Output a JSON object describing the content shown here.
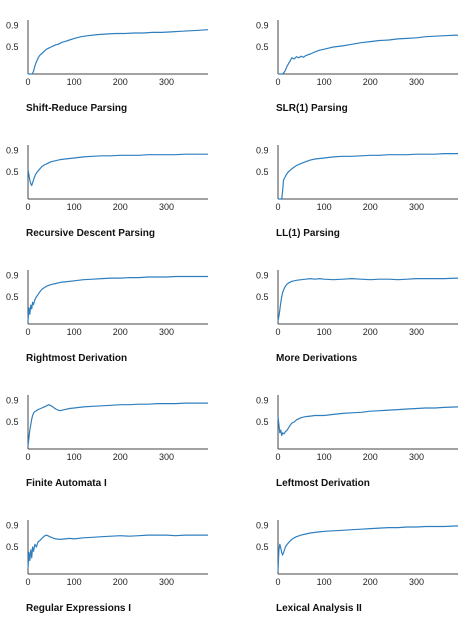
{
  "style": {
    "line_color": "#2f7fbf",
    "axis_color": "#444444",
    "text_color": "#111111"
  },
  "chart_data": [
    {
      "type": "line",
      "title": "Shift-Reduce Parsing",
      "xlim": [
        0,
        390
      ],
      "ylim": [
        0,
        1.0
      ],
      "xticks": [
        0,
        100,
        200,
        300
      ],
      "yticks": [
        0.5,
        0.9
      ],
      "grid": false,
      "legend": "none",
      "x": [
        0,
        3,
        6,
        9,
        12,
        15,
        18,
        22,
        26,
        30,
        35,
        40,
        45,
        50,
        55,
        60,
        65,
        70,
        75,
        80,
        90,
        100,
        115,
        130,
        150,
        170,
        190,
        210,
        230,
        250,
        270,
        290,
        310,
        330,
        350,
        370,
        390
      ],
      "y": [
        0.0,
        0.0,
        0.0,
        0.0,
        0.05,
        0.15,
        0.22,
        0.3,
        0.35,
        0.38,
        0.42,
        0.46,
        0.48,
        0.5,
        0.52,
        0.54,
        0.55,
        0.57,
        0.59,
        0.6,
        0.63,
        0.66,
        0.69,
        0.71,
        0.73,
        0.74,
        0.75,
        0.75,
        0.76,
        0.76,
        0.77,
        0.77,
        0.78,
        0.79,
        0.8,
        0.81,
        0.82
      ]
    },
    {
      "type": "line",
      "title": "SLR(1) Parsing",
      "xlim": [
        0,
        390
      ],
      "ylim": [
        0,
        1.0
      ],
      "xticks": [
        0,
        100,
        200,
        300
      ],
      "yticks": [
        0.5,
        0.9
      ],
      "grid": false,
      "legend": "none",
      "x": [
        0,
        5,
        10,
        15,
        20,
        25,
        30,
        35,
        40,
        45,
        50,
        55,
        60,
        70,
        80,
        90,
        100,
        120,
        140,
        160,
        180,
        200,
        220,
        240,
        260,
        280,
        300,
        320,
        340,
        360,
        390
      ],
      "y": [
        0.0,
        0.0,
        0.0,
        0.05,
        0.15,
        0.22,
        0.3,
        0.28,
        0.32,
        0.3,
        0.33,
        0.31,
        0.34,
        0.37,
        0.41,
        0.44,
        0.46,
        0.5,
        0.52,
        0.55,
        0.58,
        0.6,
        0.62,
        0.63,
        0.65,
        0.66,
        0.67,
        0.69,
        0.7,
        0.71,
        0.72
      ]
    },
    {
      "type": "line",
      "title": "Recursive Descent Parsing",
      "xlim": [
        0,
        390
      ],
      "ylim": [
        0,
        1.0
      ],
      "xticks": [
        0,
        100,
        200,
        300
      ],
      "yticks": [
        0.5,
        0.9
      ],
      "grid": false,
      "legend": "none",
      "x": [
        0,
        2,
        4,
        6,
        8,
        10,
        13,
        16,
        20,
        25,
        30,
        35,
        40,
        45,
        50,
        60,
        70,
        80,
        90,
        100,
        120,
        140,
        160,
        180,
        200,
        220,
        240,
        260,
        280,
        300,
        320,
        340,
        360,
        390
      ],
      "y": [
        0.55,
        0.45,
        0.35,
        0.28,
        0.25,
        0.3,
        0.38,
        0.45,
        0.5,
        0.55,
        0.6,
        0.63,
        0.65,
        0.67,
        0.69,
        0.71,
        0.73,
        0.74,
        0.75,
        0.76,
        0.78,
        0.79,
        0.8,
        0.8,
        0.81,
        0.81,
        0.81,
        0.82,
        0.82,
        0.82,
        0.82,
        0.83,
        0.83,
        0.83
      ]
    },
    {
      "type": "line",
      "title": "LL(1) Parsing",
      "xlim": [
        0,
        390
      ],
      "ylim": [
        0,
        1.0
      ],
      "xticks": [
        0,
        100,
        200,
        300
      ],
      "yticks": [
        0.5,
        0.9
      ],
      "grid": false,
      "legend": "none",
      "x": [
        0,
        4,
        8,
        10,
        12,
        15,
        18,
        22,
        26,
        30,
        35,
        40,
        50,
        60,
        70,
        80,
        90,
        100,
        120,
        140,
        160,
        180,
        200,
        220,
        240,
        260,
        280,
        300,
        320,
        340,
        360,
        390
      ],
      "y": [
        0.0,
        0.0,
        0.0,
        0.15,
        0.35,
        0.4,
        0.45,
        0.5,
        0.53,
        0.56,
        0.59,
        0.62,
        0.66,
        0.69,
        0.72,
        0.74,
        0.75,
        0.76,
        0.78,
        0.79,
        0.79,
        0.8,
        0.81,
        0.81,
        0.82,
        0.82,
        0.82,
        0.83,
        0.83,
        0.83,
        0.84,
        0.84
      ]
    },
    {
      "type": "line",
      "title": "Rightmost Derivation",
      "xlim": [
        0,
        390
      ],
      "ylim": [
        0,
        1.0
      ],
      "xticks": [
        0,
        100,
        200,
        300
      ],
      "yticks": [
        0.5,
        0.9
      ],
      "grid": false,
      "legend": "none",
      "x": [
        0,
        2,
        4,
        6,
        8,
        10,
        12,
        15,
        18,
        22,
        26,
        30,
        35,
        40,
        50,
        60,
        70,
        80,
        100,
        120,
        140,
        160,
        180,
        200,
        220,
        240,
        260,
        280,
        300,
        320,
        340,
        360,
        390
      ],
      "y": [
        0.05,
        0.3,
        0.18,
        0.35,
        0.28,
        0.4,
        0.36,
        0.45,
        0.5,
        0.55,
        0.6,
        0.64,
        0.67,
        0.7,
        0.73,
        0.75,
        0.77,
        0.78,
        0.8,
        0.82,
        0.83,
        0.84,
        0.85,
        0.85,
        0.86,
        0.86,
        0.87,
        0.87,
        0.87,
        0.88,
        0.88,
        0.88,
        0.88
      ]
    },
    {
      "type": "line",
      "title": "More Derivations",
      "xlim": [
        0,
        390
      ],
      "ylim": [
        0,
        1.0
      ],
      "xticks": [
        0,
        100,
        200,
        300
      ],
      "yticks": [
        0.5,
        0.9
      ],
      "grid": false,
      "legend": "none",
      "x": [
        0,
        3,
        6,
        8,
        10,
        13,
        16,
        20,
        25,
        30,
        35,
        40,
        50,
        60,
        70,
        80,
        90,
        100,
        120,
        140,
        160,
        180,
        200,
        220,
        240,
        260,
        280,
        300,
        320,
        340,
        360,
        390
      ],
      "y": [
        0.05,
        0.2,
        0.4,
        0.5,
        0.58,
        0.65,
        0.7,
        0.74,
        0.77,
        0.79,
        0.8,
        0.81,
        0.82,
        0.83,
        0.84,
        0.83,
        0.84,
        0.83,
        0.82,
        0.83,
        0.84,
        0.83,
        0.82,
        0.83,
        0.83,
        0.82,
        0.83,
        0.84,
        0.84,
        0.84,
        0.84,
        0.85
      ]
    },
    {
      "type": "line",
      "title": "Finite Automata I",
      "xlim": [
        0,
        390
      ],
      "ylim": [
        0,
        1.0
      ],
      "xticks": [
        0,
        100,
        200,
        300
      ],
      "yticks": [
        0.5,
        0.9
      ],
      "grid": false,
      "legend": "none",
      "x": [
        0,
        2,
        4,
        6,
        8,
        10,
        13,
        16,
        20,
        25,
        30,
        35,
        40,
        45,
        50,
        55,
        60,
        65,
        70,
        75,
        80,
        90,
        100,
        120,
        140,
        160,
        180,
        200,
        220,
        240,
        260,
        280,
        300,
        320,
        340,
        360,
        390
      ],
      "y": [
        0.05,
        0.2,
        0.35,
        0.45,
        0.55,
        0.62,
        0.68,
        0.7,
        0.72,
        0.74,
        0.76,
        0.78,
        0.8,
        0.82,
        0.8,
        0.77,
        0.74,
        0.72,
        0.71,
        0.72,
        0.73,
        0.75,
        0.76,
        0.78,
        0.79,
        0.8,
        0.81,
        0.82,
        0.82,
        0.83,
        0.83,
        0.84,
        0.84,
        0.84,
        0.85,
        0.85,
        0.85
      ]
    },
    {
      "type": "line",
      "title": "Leftmost Derivation",
      "xlim": [
        0,
        390
      ],
      "ylim": [
        0,
        1.0
      ],
      "xticks": [
        0,
        100,
        200,
        300
      ],
      "yticks": [
        0.5,
        0.9
      ],
      "grid": false,
      "legend": "none",
      "x": [
        0,
        2,
        4,
        6,
        8,
        10,
        13,
        16,
        20,
        25,
        30,
        35,
        40,
        50,
        60,
        70,
        80,
        90,
        100,
        120,
        140,
        160,
        180,
        200,
        220,
        240,
        260,
        280,
        300,
        320,
        340,
        360,
        390
      ],
      "y": [
        0.6,
        0.45,
        0.3,
        0.35,
        0.25,
        0.3,
        0.28,
        0.32,
        0.35,
        0.42,
        0.48,
        0.5,
        0.54,
        0.58,
        0.6,
        0.61,
        0.62,
        0.62,
        0.62,
        0.64,
        0.66,
        0.67,
        0.68,
        0.7,
        0.71,
        0.72,
        0.73,
        0.74,
        0.75,
        0.76,
        0.76,
        0.77,
        0.78
      ]
    },
    {
      "type": "line",
      "title": "Regular Expressions I",
      "xlim": [
        0,
        390
      ],
      "ylim": [
        0,
        1.0
      ],
      "xticks": [
        0,
        100,
        200,
        300
      ],
      "yticks": [
        0.5,
        0.9
      ],
      "grid": false,
      "legend": "none",
      "x": [
        0,
        2,
        4,
        6,
        8,
        10,
        12,
        15,
        18,
        22,
        26,
        30,
        35,
        40,
        45,
        50,
        60,
        70,
        80,
        90,
        100,
        120,
        140,
        160,
        180,
        200,
        220,
        240,
        260,
        280,
        300,
        320,
        340,
        360,
        390
      ],
      "y": [
        0.1,
        0.4,
        0.25,
        0.45,
        0.3,
        0.5,
        0.42,
        0.55,
        0.5,
        0.6,
        0.62,
        0.66,
        0.7,
        0.72,
        0.7,
        0.68,
        0.65,
        0.64,
        0.65,
        0.66,
        0.65,
        0.67,
        0.68,
        0.69,
        0.7,
        0.71,
        0.7,
        0.71,
        0.72,
        0.72,
        0.72,
        0.71,
        0.72,
        0.72,
        0.72
      ]
    },
    {
      "type": "line",
      "title": "Lexical Analysis II",
      "xlim": [
        0,
        390
      ],
      "ylim": [
        0,
        1.0
      ],
      "xticks": [
        0,
        100,
        200,
        300
      ],
      "yticks": [
        0.5,
        0.9
      ],
      "grid": false,
      "legend": "none",
      "x": [
        0,
        2,
        4,
        6,
        8,
        10,
        13,
        16,
        20,
        25,
        30,
        35,
        40,
        50,
        60,
        70,
        80,
        90,
        100,
        120,
        140,
        160,
        180,
        200,
        220,
        240,
        260,
        280,
        300,
        320,
        340,
        360,
        390
      ],
      "y": [
        0.05,
        0.45,
        0.55,
        0.48,
        0.4,
        0.35,
        0.42,
        0.5,
        0.55,
        0.6,
        0.64,
        0.67,
        0.69,
        0.72,
        0.74,
        0.76,
        0.77,
        0.78,
        0.79,
        0.8,
        0.81,
        0.82,
        0.83,
        0.84,
        0.85,
        0.86,
        0.86,
        0.87,
        0.87,
        0.88,
        0.88,
        0.88,
        0.89
      ]
    }
  ]
}
